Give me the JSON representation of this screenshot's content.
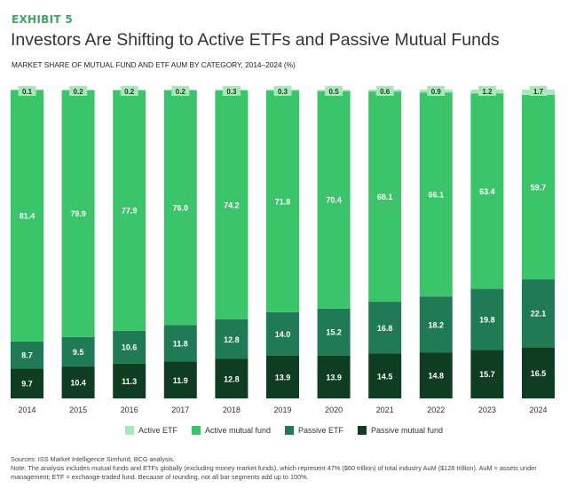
{
  "exhibit_label": "EXHIBIT 5",
  "title": "Investors Are Shifting to Active ETFs and Passive Mutual Funds",
  "chart_data": {
    "type": "bar",
    "stacked": true,
    "title": "MARKET SHARE OF MUTUAL FUND AND ETF AUM BY CATEGORY, 2014–2024 (%)",
    "xlabel": "",
    "ylabel": "",
    "ylim": [
      0,
      100
    ],
    "grid": false,
    "legend_position": "bottom",
    "categories": [
      "2014",
      "2015",
      "2016",
      "2017",
      "2018",
      "2019",
      "2020",
      "2021",
      "2022",
      "2023",
      "2024"
    ],
    "series": [
      {
        "name": "Passive mutual fund",
        "color": "#0f3d22",
        "values": [
          9.7,
          10.4,
          11.3,
          11.9,
          12.8,
          13.9,
          13.9,
          14.5,
          14.8,
          15.7,
          16.5
        ]
      },
      {
        "name": "Passive ETF",
        "color": "#1f7a55",
        "values": [
          8.7,
          9.5,
          10.6,
          11.8,
          12.8,
          14.0,
          15.2,
          16.8,
          18.2,
          19.8,
          22.1
        ]
      },
      {
        "name": "Active mutual fund",
        "color": "#3cc46a",
        "values": [
          81.4,
          79.9,
          77.9,
          76.0,
          74.2,
          71.8,
          70.4,
          68.1,
          66.1,
          63.4,
          59.7
        ]
      },
      {
        "name": "Active ETF",
        "color": "#a8e8b8",
        "values": [
          0.1,
          0.2,
          0.2,
          0.2,
          0.3,
          0.3,
          0.5,
          0.6,
          0.9,
          1.2,
          1.7
        ]
      }
    ],
    "legend_order": [
      "Active ETF",
      "Active mutual fund",
      "Passive ETF",
      "Passive mutual fund"
    ]
  },
  "sources": "Sources: ISS Market Intelligence Simfund; BCG analysis.",
  "note": "Note: The analysis includes mutual funds and ETFs globally (excluding money market funds), which represent 47% ($60 trillion) of total industry AuM ($128 trillion). AuM = assets under management; ETF = exchange-traded fund. Because of rounding, not all bar segments add up to 100%."
}
